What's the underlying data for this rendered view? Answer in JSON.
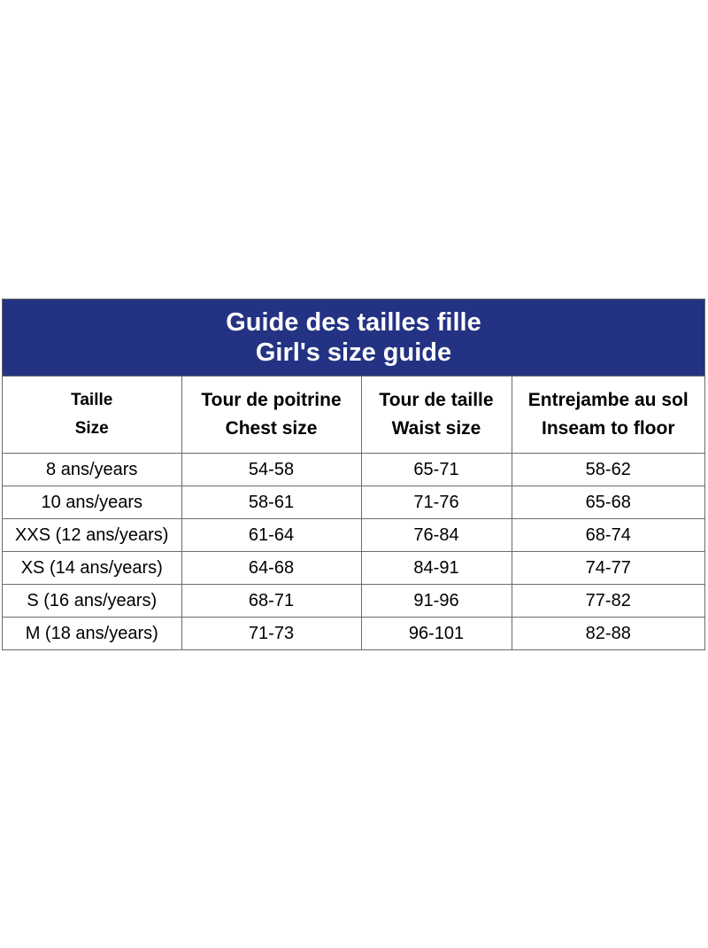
{
  "title": {
    "line1": "Guide des tailles fille",
    "line2": "Girl's size guide"
  },
  "columns": [
    {
      "fr": "Taille",
      "en": "Size"
    },
    {
      "fr": "Tour de poitrine",
      "en": "Chest size"
    },
    {
      "fr": "Tour de taille",
      "en": "Waist size"
    },
    {
      "fr": "Entrejambe au sol",
      "en": "Inseam to floor"
    }
  ],
  "rows": [
    [
      "8 ans/years",
      "54-58",
      "65-71",
      "58-62"
    ],
    [
      "10 ans/years",
      "58-61",
      "71-76",
      "65-68"
    ],
    [
      "XXS (12 ans/years)",
      "61-64",
      "76-84",
      "68-74"
    ],
    [
      "XS (14 ans/years)",
      "64-68",
      "84-91",
      "74-77"
    ],
    [
      "S (16 ans/years)",
      "68-71",
      "91-96",
      "77-82"
    ],
    [
      "M (18 ans/years)",
      "71-73",
      "96-101",
      "82-88"
    ]
  ],
  "colors": {
    "title_background": "#233282",
    "title_text": "#ffffff",
    "border": "#6b6b6b"
  }
}
